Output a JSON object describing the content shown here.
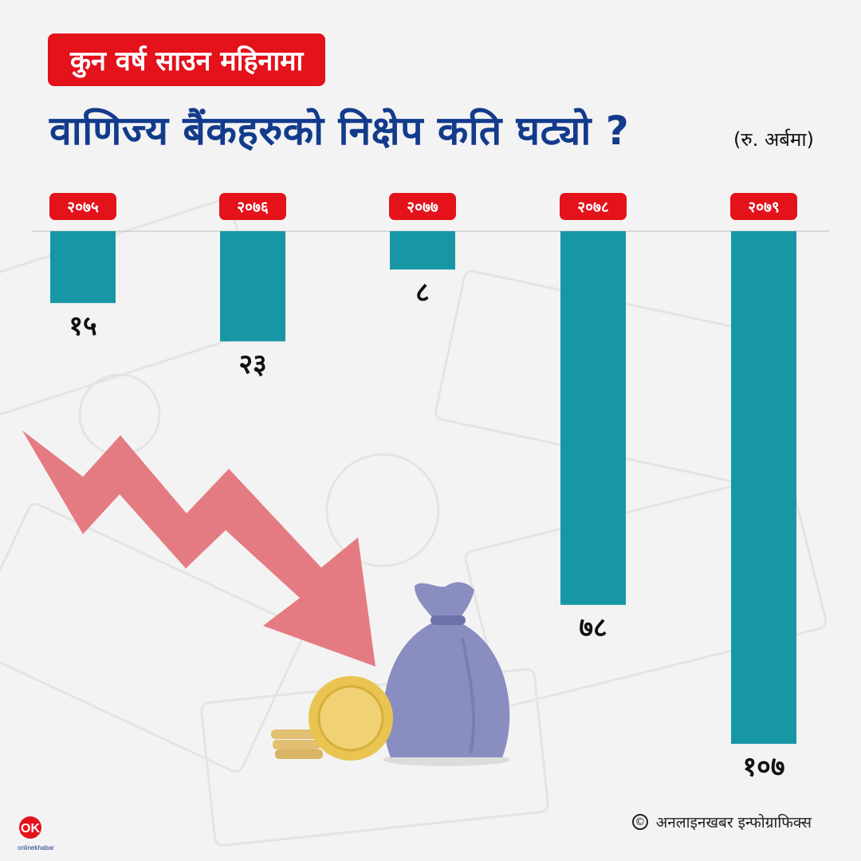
{
  "header": {
    "tag": "कुन वर्ष साउन महिनामा",
    "title": "वाणिज्य बैंकहरुको निक्षेप कति घट्यो ?",
    "unit": "(रु. अर्बमा)"
  },
  "footer": {
    "credit": "अनलाइनखबर इन्फोग्राफिक्स",
    "copyright_symbol": "©"
  },
  "logo": {
    "mark": "OK",
    "text": "onlinekhabar"
  },
  "icons": [
    "money-bag-icon",
    "gold-coin-icon",
    "downward-arrow-icon",
    "copyright-icon"
  ],
  "colors": {
    "bar": "#1797a5",
    "badge": "#e3121b",
    "title": "#123b8c",
    "arrow": "#e57b82",
    "bag": "#8a8dc0",
    "coin": "#e9c451"
  },
  "chart_data": {
    "type": "bar",
    "orientation": "downward",
    "categories": [
      "२०७५",
      "२०७६",
      "२०७७",
      "२०७८",
      "२०७९"
    ],
    "values": [
      15,
      23,
      8,
      78,
      107
    ],
    "value_labels": [
      "१५",
      "२३",
      "८",
      "७८",
      "१०७"
    ],
    "title": "वाणिज्य बैंकहरुको निक्षेप कति घट्यो ?",
    "unit": "(रु. अर्बमा)",
    "ylim": [
      0,
      107
    ]
  }
}
